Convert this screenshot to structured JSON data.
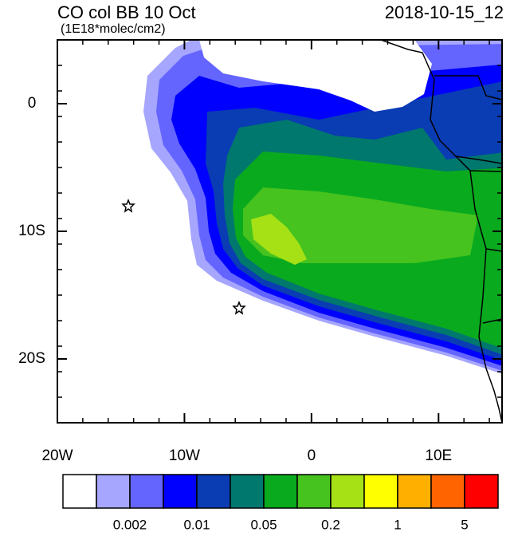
{
  "map": {
    "title": "CO col BB 10 Oct",
    "subtitle": "(1E18*molec/cm2)",
    "time_label": "2018-10-15_12",
    "xlim": [
      -20,
      15
    ],
    "ylim": [
      -25,
      5
    ],
    "xticks": [
      {
        "value": -20,
        "label": "20W"
      },
      {
        "value": -10,
        "label": "10W"
      },
      0,
      {
        "value": 10,
        "label": "10E"
      }
    ],
    "yticks": [
      0,
      {
        "value": -10,
        "label": "10S"
      },
      {
        "value": -20,
        "label": "20S"
      }
    ],
    "colorbar": {
      "colors": [
        "#ffffff",
        "#a6a6ff",
        "#6464ff",
        "#0000ff",
        "#0a3cb4",
        "#00786e",
        "#0aaa1e",
        "#46c31e",
        "#a5e114",
        "#ffff00",
        "#ffaf00",
        "#ff6400",
        "#ff0000"
      ],
      "labels": [
        0.002,
        0.01,
        0.05,
        0.2,
        1,
        5
      ]
    }
  }
}
